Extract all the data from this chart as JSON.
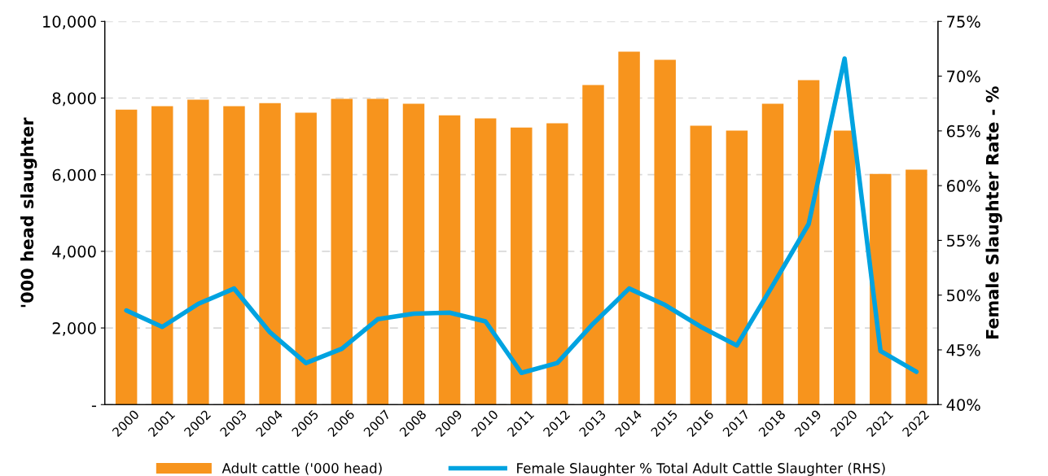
{
  "chart_data": {
    "type": "bar",
    "ylabel": "'000 head slaughter",
    "y2label": "Female Slaughter Rate - %",
    "categories": [
      "2000",
      "2001",
      "2002",
      "2003",
      "2004",
      "2005",
      "2006",
      "2007",
      "2008",
      "2009",
      "2010",
      "2011",
      "2012",
      "2013",
      "2014",
      "2015",
      "2016",
      "2017",
      "2018",
      "2019",
      "2020",
      "2021",
      "2022"
    ],
    "series": [
      {
        "name": "Adult cattle ('000 head)",
        "color": "#f7941d",
        "values": [
          7700,
          7790,
          7960,
          7790,
          7870,
          7620,
          7980,
          7980,
          7850,
          7550,
          7470,
          7230,
          7340,
          8340,
          9210,
          9000,
          7280,
          7150,
          7850,
          8470,
          7150,
          6020,
          6130
        ]
      },
      {
        "name": "Female Slaughter % Total Adult Cattle Slaughter (RHS)",
        "type": "line",
        "axis": "y2",
        "color": "#00a3e0",
        "values": [
          48.6,
          47.1,
          49.2,
          50.6,
          46.6,
          43.8,
          45.1,
          47.8,
          48.3,
          48.4,
          47.6,
          42.9,
          43.8,
          47.4,
          50.6,
          49.1,
          47.1,
          45.4,
          50.9,
          56.5,
          71.6,
          44.9,
          43.0
        ]
      }
    ],
    "ylim": [
      0,
      10000
    ],
    "yticks": [
      {
        "value": 0,
        "label": "-"
      },
      {
        "value": 2000,
        "label": "2,000"
      },
      {
        "value": 4000,
        "label": "4,000"
      },
      {
        "value": 6000,
        "label": "6,000"
      },
      {
        "value": 8000,
        "label": "8,000"
      },
      {
        "value": 10000,
        "label": "10,000"
      }
    ],
    "y2lim": [
      40,
      75
    ],
    "y2ticks": [
      {
        "value": 40,
        "label": "40%"
      },
      {
        "value": 45,
        "label": "45%"
      },
      {
        "value": 50,
        "label": "50%"
      },
      {
        "value": 55,
        "label": "55%"
      },
      {
        "value": 60,
        "label": "60%"
      },
      {
        "value": 65,
        "label": "65%"
      },
      {
        "value": 70,
        "label": "70%"
      },
      {
        "value": 75,
        "label": "75%"
      }
    ],
    "grid": "y",
    "legend": "bottom",
    "marker": "none",
    "line_style": "solid"
  }
}
